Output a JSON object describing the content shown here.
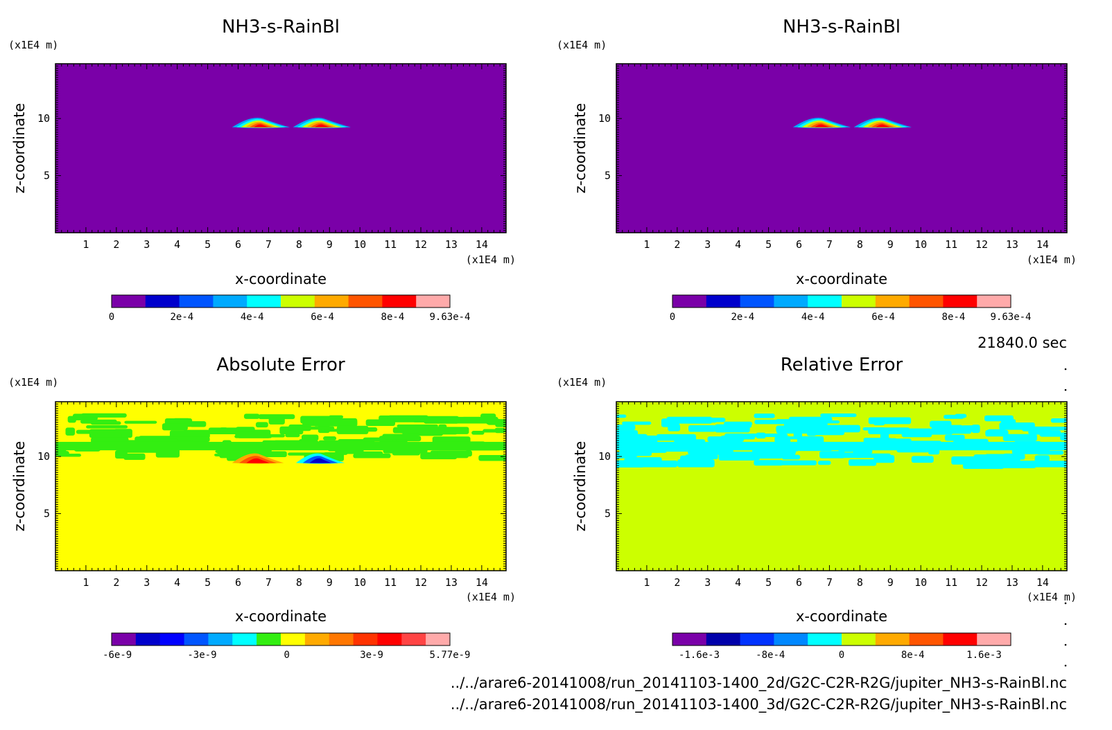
{
  "figure": {
    "time_label": "21840.0 sec",
    "file_lines": [
      "../../arare6-20141008/run_20141103-1400_2d/G2C-C2R-R2G/jupiter_NH3-s-RainBl.nc",
      "../../arare6-20141008/run_20141103-1400_3d/G2C-C2R-R2G/jupiter_NH3-s-RainBl.nc"
    ]
  },
  "chart_data": [
    {
      "type": "heatmap",
      "title": "NH3-s-RainBl",
      "xlabel": "x-coordinate",
      "ylabel": "z-coordinate",
      "x_unit": "(x1E4 m)",
      "y_unit": "(x1E4 m)",
      "xlim": [
        0,
        14.8
      ],
      "ylim": [
        0,
        14.8
      ],
      "xticks": [
        1,
        2,
        3,
        4,
        5,
        6,
        7,
        8,
        9,
        10,
        11,
        12,
        13,
        14
      ],
      "yticks": [
        5,
        10
      ],
      "background_color": "#7a00a8",
      "features": [
        {
          "kind": "lens",
          "x": [
            5.8,
            7.7
          ],
          "z_center": 9.3,
          "peak": "9.63e-4"
        },
        {
          "kind": "lens",
          "x": [
            7.8,
            9.7
          ],
          "z_center": 9.3,
          "peak": "9.63e-4"
        }
      ],
      "colorbar": {
        "colors": [
          "#7a00a8",
          "#0000cc",
          "#0055ff",
          "#00aaff",
          "#00ffff",
          "#ccff00",
          "#ffaa00",
          "#ff5500",
          "#ff0000",
          "#ffaaaa"
        ],
        "labels": [
          "0",
          "2e-4",
          "4e-4",
          "6e-4",
          "8e-4",
          "9.63e-4"
        ],
        "label_values": [
          0,
          0.0002,
          0.0004,
          0.0006,
          0.0008,
          0.000963
        ],
        "min": 0,
        "max": 0.000963
      }
    },
    {
      "type": "heatmap",
      "title": "NH3-s-RainBl",
      "xlabel": "x-coordinate",
      "ylabel": "z-coordinate",
      "x_unit": "(x1E4 m)",
      "y_unit": "(x1E4 m)",
      "xlim": [
        0,
        14.8
      ],
      "ylim": [
        0,
        14.8
      ],
      "xticks": [
        1,
        2,
        3,
        4,
        5,
        6,
        7,
        8,
        9,
        10,
        11,
        12,
        13,
        14
      ],
      "yticks": [
        5,
        10
      ],
      "background_color": "#7a00a8",
      "features": [
        {
          "kind": "lens",
          "x": [
            5.8,
            7.7
          ],
          "z_center": 9.3,
          "peak": "9.63e-4"
        },
        {
          "kind": "lens",
          "x": [
            7.8,
            9.7
          ],
          "z_center": 9.3,
          "peak": "9.63e-4"
        }
      ],
      "colorbar": {
        "colors": [
          "#7a00a8",
          "#0000cc",
          "#0055ff",
          "#00aaff",
          "#00ffff",
          "#ccff00",
          "#ffaa00",
          "#ff5500",
          "#ff0000",
          "#ffaaaa"
        ],
        "labels": [
          "0",
          "2e-4",
          "4e-4",
          "6e-4",
          "8e-4",
          "9.63e-4"
        ],
        "label_values": [
          0,
          0.0002,
          0.0004,
          0.0006,
          0.0008,
          0.000963
        ],
        "min": 0,
        "max": 0.000963
      }
    },
    {
      "type": "heatmap",
      "title": "Absolute Error",
      "xlabel": "x-coordinate",
      "ylabel": "z-coordinate",
      "x_unit": "(x1E4 m)",
      "y_unit": "(x1E4 m)",
      "xlim": [
        0,
        14.8
      ],
      "ylim": [
        0,
        14.8
      ],
      "xticks": [
        1,
        2,
        3,
        4,
        5,
        6,
        7,
        8,
        9,
        10,
        11,
        12,
        13,
        14
      ],
      "yticks": [
        5,
        10
      ],
      "background_color": "#ffff00",
      "band_color": "#33ee11",
      "features": [
        {
          "kind": "band",
          "z": [
            9.2,
            13.8
          ]
        },
        {
          "kind": "lens",
          "x": [
            5.8,
            7.5
          ],
          "z_center": 9.5,
          "sign": "positive"
        },
        {
          "kind": "lens",
          "x": [
            7.9,
            9.5
          ],
          "z_center": 9.5,
          "sign": "negative"
        }
      ],
      "colorbar": {
        "colors": [
          "#7a00a8",
          "#0000cc",
          "#0000ff",
          "#0055ff",
          "#00aaff",
          "#00ffff",
          "#33ee11",
          "#ffff00",
          "#ffaa00",
          "#ff7700",
          "#ff3300",
          "#ff0000",
          "#ff4444",
          "#ffaaaa"
        ],
        "labels": [
          "-6e-9",
          "-3e-9",
          "0",
          "3e-9",
          "5.77e-9"
        ],
        "label_values": [
          -6e-09,
          -3e-09,
          0,
          3e-09,
          5.77e-09
        ],
        "min": -6.2e-09,
        "max": 5.77e-09
      }
    },
    {
      "type": "heatmap",
      "title": "Relative Error",
      "xlabel": "x-coordinate",
      "ylabel": "z-coordinate",
      "x_unit": "(x1E4 m)",
      "y_unit": "(x1E4 m)",
      "xlim": [
        0,
        14.8
      ],
      "ylim": [
        0,
        14.8
      ],
      "xticks": [
        1,
        2,
        3,
        4,
        5,
        6,
        7,
        8,
        9,
        10,
        11,
        12,
        13,
        14
      ],
      "yticks": [
        5,
        10
      ],
      "background_color": "#ccff00",
      "band_color": "#00ffff",
      "features": [
        {
          "kind": "band",
          "z": [
            8.5,
            13.8
          ]
        }
      ],
      "colorbar": {
        "colors": [
          "#7a00a8",
          "#0000aa",
          "#0033ff",
          "#0088ff",
          "#00ffff",
          "#ccff00",
          "#ffaa00",
          "#ff5500",
          "#ff0000",
          "#ffaaaa"
        ],
        "labels": [
          "-1.6e-3",
          "-8e-4",
          "0",
          "8e-4",
          "1.6e-3"
        ],
        "label_values": [
          -0.0016,
          -0.0008,
          0,
          0.0008,
          0.0016
        ],
        "min": -0.0019,
        "max": 0.0019
      }
    }
  ]
}
